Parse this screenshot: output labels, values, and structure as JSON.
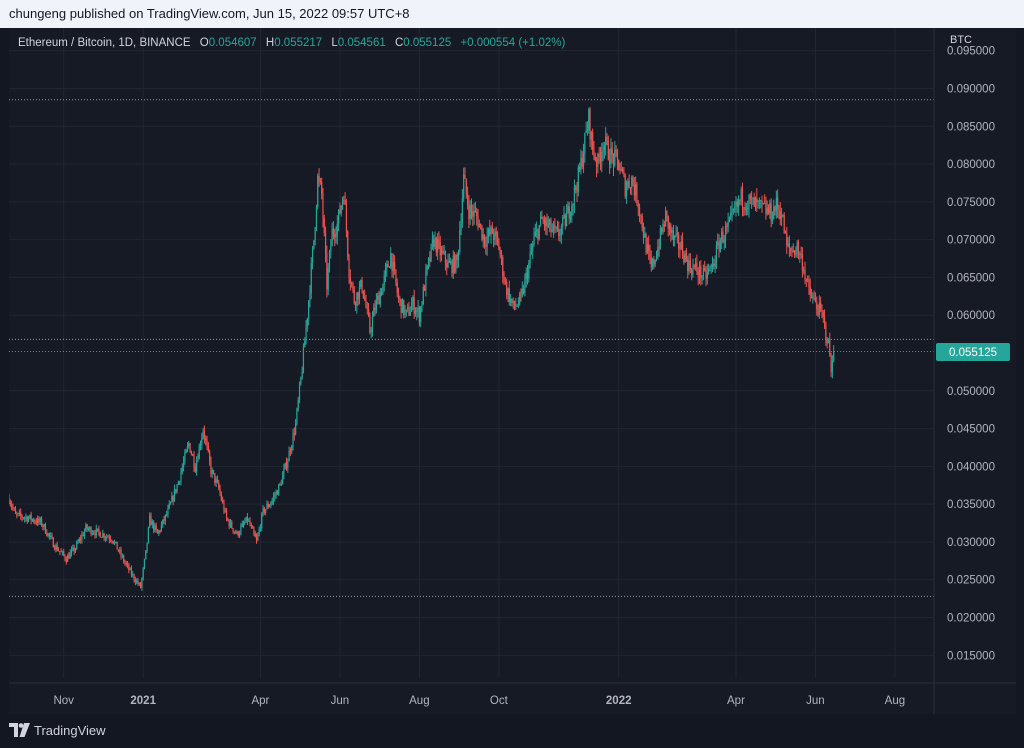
{
  "header": {
    "publisher": "chungeng published on TradingView.com, Jun 15, 2022 09:57 UTC+8"
  },
  "footer": {
    "brand": "TradingView",
    "logo_icon": "tradingview-logo-icon"
  },
  "legend": {
    "symbol": "Ethereum / Bitcoin, 1D, BINANCE",
    "open_label": "O",
    "open": "0.054607",
    "high_label": "H",
    "high": "0.055217",
    "low_label": "L",
    "low": "0.054561",
    "close_label": "C",
    "close": "0.055125",
    "change": "+0.000554 (+1.02%)"
  },
  "colors": {
    "up": "#26a69a",
    "down": "#ef5350",
    "grid": "#222633",
    "axis_text": "#b2b5be",
    "bg": "#161a25"
  },
  "chart_data": {
    "type": "candlestick",
    "y_unit": "BTC",
    "ylim": [
      0.012,
      0.098
    ],
    "xlim": [
      "2020-09-20",
      "2022-08-31"
    ],
    "grid": true,
    "current_price": {
      "value": 0.055125,
      "label": "0.055125"
    },
    "y_ticks": [
      {
        "value": 0.095,
        "label": "0.095000"
      },
      {
        "value": 0.09,
        "label": "0.090000"
      },
      {
        "value": 0.085,
        "label": "0.085000"
      },
      {
        "value": 0.08,
        "label": "0.080000"
      },
      {
        "value": 0.075,
        "label": "0.075000"
      },
      {
        "value": 0.07,
        "label": "0.070000"
      },
      {
        "value": 0.065,
        "label": "0.065000"
      },
      {
        "value": 0.06,
        "label": "0.060000"
      },
      {
        "value": 0.05,
        "label": "0.050000"
      },
      {
        "value": 0.045,
        "label": "0.045000"
      },
      {
        "value": 0.04,
        "label": "0.040000"
      },
      {
        "value": 0.035,
        "label": "0.035000"
      },
      {
        "value": 0.03,
        "label": "0.030000"
      },
      {
        "value": 0.025,
        "label": "0.025000"
      },
      {
        "value": 0.02,
        "label": "0.020000"
      },
      {
        "value": 0.015,
        "label": "0.015000"
      }
    ],
    "x_ticks": [
      {
        "date": "2020-11-01",
        "label": "Nov",
        "bold": false
      },
      {
        "date": "2021-01-01",
        "label": "2021",
        "bold": true
      },
      {
        "date": "2021-04-01",
        "label": "Apr",
        "bold": false
      },
      {
        "date": "2021-06-01",
        "label": "Jun",
        "bold": false
      },
      {
        "date": "2021-08-01",
        "label": "Aug",
        "bold": false
      },
      {
        "date": "2021-10-01",
        "label": "Oct",
        "bold": false
      },
      {
        "date": "2022-01-01",
        "label": "2022",
        "bold": true
      },
      {
        "date": "2022-04-01",
        "label": "Apr",
        "bold": false
      },
      {
        "date": "2022-06-01",
        "label": "Jun",
        "bold": false
      },
      {
        "date": "2022-08-01",
        "label": "Aug",
        "bold": false
      }
    ],
    "horizontal_levels": [
      0.0885,
      0.0568,
      0.0552,
      0.0228
    ],
    "price_path": [
      [
        "2020-09-20",
        0.0358
      ],
      [
        "2020-09-25",
        0.0335
      ],
      [
        "2020-10-05",
        0.0332
      ],
      [
        "2020-10-15",
        0.0325
      ],
      [
        "2020-10-25",
        0.0295
      ],
      [
        "2020-11-03",
        0.0278
      ],
      [
        "2020-11-10",
        0.0292
      ],
      [
        "2020-11-18",
        0.0318
      ],
      [
        "2020-11-28",
        0.0312
      ],
      [
        "2020-12-08",
        0.0305
      ],
      [
        "2020-12-18",
        0.0272
      ],
      [
        "2020-12-24",
        0.0255
      ],
      [
        "2020-12-30",
        0.024
      ],
      [
        "2021-01-03",
        0.0285
      ],
      [
        "2021-01-06",
        0.033
      ],
      [
        "2021-01-12",
        0.031
      ],
      [
        "2021-01-20",
        0.034
      ],
      [
        "2021-01-28",
        0.038
      ],
      [
        "2021-02-05",
        0.043
      ],
      [
        "2021-02-10",
        0.04
      ],
      [
        "2021-02-16",
        0.045
      ],
      [
        "2021-02-22",
        0.0395
      ],
      [
        "2021-02-28",
        0.037
      ],
      [
        "2021-03-06",
        0.033
      ],
      [
        "2021-03-14",
        0.031
      ],
      [
        "2021-03-22",
        0.033
      ],
      [
        "2021-03-29",
        0.03
      ],
      [
        "2021-04-03",
        0.034
      ],
      [
        "2021-04-10",
        0.0355
      ],
      [
        "2021-04-16",
        0.0375
      ],
      [
        "2021-04-22",
        0.041
      ],
      [
        "2021-04-28",
        0.0455
      ],
      [
        "2021-05-03",
        0.053
      ],
      [
        "2021-05-08",
        0.062
      ],
      [
        "2021-05-12",
        0.07
      ],
      [
        "2021-05-15",
        0.078
      ],
      [
        "2021-05-18",
        0.076
      ],
      [
        "2021-05-22",
        0.064
      ],
      [
        "2021-05-26",
        0.071
      ],
      [
        "2021-05-30",
        0.072
      ],
      [
        "2021-06-04",
        0.0765
      ],
      [
        "2021-06-08",
        0.066
      ],
      [
        "2021-06-12",
        0.062
      ],
      [
        "2021-06-18",
        0.064
      ],
      [
        "2021-06-24",
        0.058
      ],
      [
        "2021-06-28",
        0.061
      ],
      [
        "2021-07-04",
        0.064
      ],
      [
        "2021-07-10",
        0.068
      ],
      [
        "2021-07-16",
        0.062
      ],
      [
        "2021-07-22",
        0.06
      ],
      [
        "2021-07-27",
        0.0615
      ],
      [
        "2021-08-01",
        0.06
      ],
      [
        "2021-08-06",
        0.065
      ],
      [
        "2021-08-12",
        0.07
      ],
      [
        "2021-08-18",
        0.068
      ],
      [
        "2021-08-24",
        0.0665
      ],
      [
        "2021-08-30",
        0.067
      ],
      [
        "2021-09-04",
        0.078
      ],
      [
        "2021-09-08",
        0.074
      ],
      [
        "2021-09-14",
        0.073
      ],
      [
        "2021-09-20",
        0.07
      ],
      [
        "2021-09-26",
        0.071
      ],
      [
        "2021-10-01",
        0.069
      ],
      [
        "2021-10-06",
        0.064
      ],
      [
        "2021-10-12",
        0.061
      ],
      [
        "2021-10-18",
        0.062
      ],
      [
        "2021-10-22",
        0.065
      ],
      [
        "2021-10-28",
        0.07
      ],
      [
        "2021-11-03",
        0.0725
      ],
      [
        "2021-11-09",
        0.0715
      ],
      [
        "2021-11-15",
        0.0705
      ],
      [
        "2021-11-21",
        0.0725
      ],
      [
        "2021-11-27",
        0.0755
      ],
      [
        "2021-12-02",
        0.079
      ],
      [
        "2021-12-06",
        0.083
      ],
      [
        "2021-12-09",
        0.086
      ],
      [
        "2021-12-12",
        0.082
      ],
      [
        "2021-12-16",
        0.08
      ],
      [
        "2021-12-20",
        0.083
      ],
      [
        "2021-12-26",
        0.081
      ],
      [
        "2022-01-01",
        0.08
      ],
      [
        "2022-01-06",
        0.077
      ],
      [
        "2022-01-11",
        0.078
      ],
      [
        "2022-01-16",
        0.075
      ],
      [
        "2022-01-21",
        0.07
      ],
      [
        "2022-01-26",
        0.066
      ],
      [
        "2022-01-31",
        0.069
      ],
      [
        "2022-02-06",
        0.073
      ],
      [
        "2022-02-12",
        0.07
      ],
      [
        "2022-02-18",
        0.069
      ],
      [
        "2022-02-24",
        0.0665
      ],
      [
        "2022-03-02",
        0.066
      ],
      [
        "2022-03-08",
        0.065
      ],
      [
        "2022-03-14",
        0.0665
      ],
      [
        "2022-03-20",
        0.07
      ],
      [
        "2022-03-26",
        0.0715
      ],
      [
        "2022-04-01",
        0.074
      ],
      [
        "2022-04-05",
        0.0755
      ],
      [
        "2022-04-10",
        0.075
      ],
      [
        "2022-04-16",
        0.0745
      ],
      [
        "2022-04-22",
        0.074
      ],
      [
        "2022-04-28",
        0.0735
      ],
      [
        "2022-05-02",
        0.0745
      ],
      [
        "2022-05-06",
        0.0735
      ],
      [
        "2022-05-10",
        0.069
      ],
      [
        "2022-05-14",
        0.0685
      ],
      [
        "2022-05-18",
        0.069
      ],
      [
        "2022-05-22",
        0.067
      ],
      [
        "2022-05-27",
        0.063
      ],
      [
        "2022-06-01",
        0.0615
      ],
      [
        "2022-06-06",
        0.06
      ],
      [
        "2022-06-10",
        0.057
      ],
      [
        "2022-06-12",
        0.055
      ],
      [
        "2022-06-13",
        0.052
      ],
      [
        "2022-06-14",
        0.0546
      ],
      [
        "2022-06-15",
        0.0551
      ]
    ]
  }
}
